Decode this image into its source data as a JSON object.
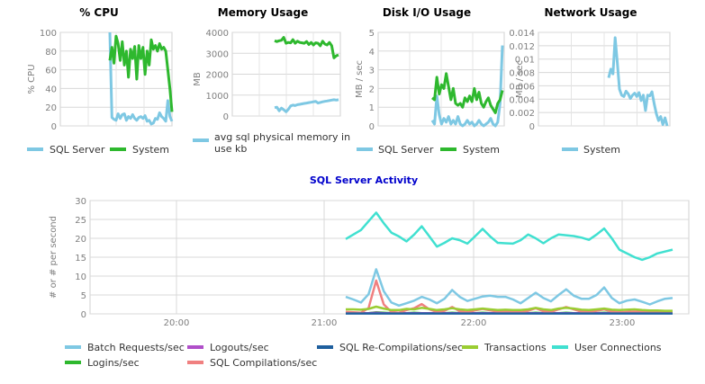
{
  "chart_data": [
    {
      "type": "line",
      "title": "% CPU",
      "ylabel": "% CPU",
      "ylim": [
        0,
        100
      ],
      "yticks": [
        "0",
        "20",
        "40",
        "60",
        "80",
        "100"
      ],
      "grid": true,
      "legend_placement": "bottom",
      "series": [
        {
          "name": "SQL Server",
          "color": "#7ec8e3",
          "x": [
            0,
            1,
            2,
            3,
            4,
            5,
            6,
            7,
            8,
            9,
            10,
            11,
            12,
            13,
            14,
            15,
            16,
            17,
            18,
            19,
            20,
            21,
            22,
            23,
            24,
            25,
            26,
            27,
            28,
            29,
            30
          ],
          "values": [
            100,
            9,
            7,
            6,
            13,
            8,
            12,
            13,
            6,
            10,
            8,
            12,
            8,
            6,
            9,
            10,
            8,
            11,
            5,
            6,
            2,
            3,
            8,
            7,
            14,
            10,
            8,
            5,
            27,
            10,
            5
          ]
        },
        {
          "name": "System",
          "color": "#2eb82e",
          "x": [
            0,
            1,
            2,
            3,
            4,
            5,
            6,
            7,
            8,
            9,
            10,
            11,
            12,
            13,
            14,
            15,
            16,
            17,
            18,
            19,
            20,
            21,
            22,
            23,
            24,
            25,
            26,
            27,
            28,
            29,
            30
          ],
          "values": [
            70,
            84,
            67,
            96,
            88,
            70,
            90,
            65,
            80,
            52,
            82,
            72,
            85,
            50,
            86,
            72,
            84,
            55,
            80,
            65,
            92,
            82,
            86,
            80,
            88,
            82,
            84,
            80,
            60,
            40,
            15
          ]
        }
      ]
    },
    {
      "type": "line",
      "title": "Memory Usage",
      "ylabel": "MB",
      "ylim": [
        0,
        4000
      ],
      "yticks": [
        "0",
        "1000",
        "2000",
        "3000",
        "4000"
      ],
      "grid": true,
      "legend_placement": "bottom",
      "series": [
        {
          "name": "avg sql physical memory in use kb",
          "color": "#7ec8e3",
          "x": [
            0,
            1,
            2,
            3,
            4,
            5,
            6,
            7,
            8,
            9,
            10,
            11,
            12,
            13,
            14,
            15,
            16,
            17,
            18,
            19,
            20,
            21,
            22,
            23,
            24,
            25,
            26,
            27,
            28
          ],
          "values": [
            400,
            420,
            250,
            380,
            300,
            200,
            320,
            480,
            520,
            500,
            540,
            560,
            580,
            600,
            620,
            640,
            660,
            680,
            700,
            620,
            650,
            680,
            700,
            720,
            740,
            760,
            780,
            760,
            780
          ]
        },
        {
          "name": "",
          "color": "#2eb82e",
          "x": [
            0,
            1,
            2,
            3,
            4,
            5,
            6,
            7,
            8,
            9,
            10,
            11,
            12,
            13,
            14,
            15,
            16,
            17,
            18,
            19,
            20,
            21,
            22,
            23,
            24,
            25,
            26,
            27,
            28
          ],
          "values": [
            3600,
            3560,
            3600,
            3620,
            3760,
            3480,
            3520,
            3500,
            3650,
            3480,
            3580,
            3520,
            3500,
            3480,
            3560,
            3420,
            3520,
            3400,
            3500,
            3480,
            3360,
            3580,
            3440,
            3400,
            3520,
            3360,
            2780,
            2880,
            2920
          ]
        }
      ]
    },
    {
      "type": "line",
      "title": "Disk I/O Usage",
      "ylabel": "MB / sec",
      "ylim": [
        0,
        5
      ],
      "yticks": [
        "0",
        "1",
        "2",
        "3",
        "4",
        "5"
      ],
      "grid": true,
      "legend_placement": "bottom",
      "series": [
        {
          "name": "SQL Server",
          "color": "#7ec8e3",
          "x": [
            0,
            1,
            2,
            3,
            4,
            5,
            6,
            7,
            8,
            9,
            10,
            11,
            12,
            13,
            14,
            15,
            16,
            17,
            18,
            19,
            20,
            21,
            22,
            23,
            24,
            25,
            26,
            27,
            28,
            29,
            30
          ],
          "values": [
            0.3,
            0.1,
            1.6,
            0.6,
            0.1,
            0.4,
            0.2,
            0.5,
            0.1,
            0.3,
            0.1,
            0.5,
            0.1,
            0.0,
            0.1,
            0.3,
            0.1,
            0.2,
            0.0,
            0.1,
            0.3,
            0.1,
            0.0,
            0.1,
            0.2,
            0.4,
            0.1,
            0.0,
            0.2,
            1.2,
            4.3
          ]
        },
        {
          "name": "System",
          "color": "#2eb82e",
          "x": [
            0,
            1,
            2,
            3,
            4,
            5,
            6,
            7,
            8,
            9,
            10,
            11,
            12,
            13,
            14,
            15,
            16,
            17,
            18,
            19,
            20,
            21,
            22,
            23,
            24,
            25,
            26,
            27,
            28,
            29,
            30
          ],
          "values": [
            1.5,
            1.4,
            2.6,
            1.7,
            2.2,
            2.0,
            2.8,
            2.1,
            1.4,
            2.0,
            1.2,
            1.1,
            1.2,
            1.0,
            1.5,
            1.3,
            1.6,
            1.3,
            2.0,
            1.4,
            1.8,
            1.2,
            1.0,
            1.3,
            1.5,
            1.1,
            0.9,
            0.7,
            1.2,
            1.4,
            1.9
          ]
        }
      ]
    },
    {
      "type": "line",
      "title": "Network Usage",
      "ylabel": "MB / sec",
      "ylim": [
        0,
        0.014
      ],
      "yticks": [
        "0",
        "0.002",
        "0.004",
        "0.006",
        "0.008",
        "0.01",
        "0.012",
        "0.014"
      ],
      "grid": true,
      "legend_placement": "bottom",
      "series": [
        {
          "name": "System",
          "color": "#7ec8e3",
          "x": [
            0,
            1,
            2,
            3,
            4,
            5,
            6,
            7,
            8,
            9,
            10,
            11,
            12,
            13,
            14,
            15,
            16,
            17,
            18,
            19,
            20,
            21,
            22,
            23,
            24,
            25,
            26,
            27
          ],
          "values": [
            0.0072,
            0.0085,
            0.0078,
            0.0132,
            0.0095,
            0.0055,
            0.0046,
            0.0044,
            0.0052,
            0.0048,
            0.0041,
            0.0046,
            0.0049,
            0.0044,
            0.005,
            0.0038,
            0.0046,
            0.0023,
            0.0046,
            0.0045,
            0.0051,
            0.0033,
            0.0018,
            0.0008,
            0.0014,
            0.0002,
            0.0012,
            0.0
          ]
        }
      ]
    },
    {
      "type": "line",
      "title": "SQL Server Activity",
      "ylabel": "# or # per second",
      "ylim": [
        0,
        30
      ],
      "yticks": [
        "0",
        "5",
        "10",
        "15",
        "20",
        "25",
        "30"
      ],
      "xticks": [
        "20:00",
        "21:00",
        "22:00",
        "23:00"
      ],
      "grid": true,
      "legend_placement": "bottom",
      "x": [
        "21:06",
        "21:09",
        "21:12",
        "21:15",
        "21:18",
        "21:21",
        "21:24",
        "21:27",
        "21:30",
        "21:33",
        "21:36",
        "21:39",
        "21:42",
        "21:45",
        "21:48",
        "21:51",
        "21:54",
        "21:57",
        "22:00",
        "22:03",
        "22:06",
        "22:09",
        "22:12",
        "22:15",
        "22:18",
        "22:21",
        "22:24",
        "22:27",
        "22:30",
        "22:33",
        "22:36",
        "22:39",
        "22:42",
        "22:45",
        "22:48",
        "22:51",
        "22:54",
        "22:57",
        "23:00",
        "23:03",
        "23:06",
        "23:09",
        "23:12",
        "23:15"
      ],
      "series": [
        {
          "name": "Batch Requests/sec",
          "color": "#7ec8e3",
          "values": [
            4.5,
            3.8,
            3.0,
            5.2,
            11.8,
            6.0,
            3.0,
            2.2,
            2.8,
            3.5,
            4.5,
            3.8,
            2.8,
            4.0,
            6.3,
            4.5,
            3.4,
            4.0,
            4.6,
            4.8,
            4.5,
            4.5,
            3.8,
            2.8,
            4.2,
            5.6,
            4.2,
            3.3,
            5.0,
            6.5,
            4.8,
            4.0,
            4.0,
            5.0,
            7.0,
            4.2,
            2.8,
            3.5,
            3.8,
            3.2,
            2.5,
            3.3,
            4.0,
            4.2
          ]
        },
        {
          "name": "Logins/sec",
          "color": "#2eb82e",
          "values": [
            0.3,
            0.3,
            0.2,
            0.2,
            0.4,
            0.3,
            0.2,
            0.2,
            0.2,
            0.3,
            0.2,
            0.2,
            0.2,
            0.2,
            0.3,
            0.2,
            0.2,
            0.2,
            0.3,
            0.2,
            0.2,
            0.2,
            0.2,
            0.2,
            0.2,
            0.3,
            0.2,
            0.2,
            0.2,
            0.3,
            0.2,
            0.2,
            0.2,
            0.2,
            0.3,
            0.2,
            0.2,
            0.2,
            0.2,
            0.2,
            0.2,
            0.2,
            0.2,
            0.2
          ]
        },
        {
          "name": "Logouts/sec",
          "color": "#b04fc9",
          "values": [
            0.2,
            0.2,
            0.2,
            0.2,
            0.3,
            0.2,
            0.2,
            0.2,
            0.2,
            0.2,
            0.2,
            0.2,
            0.2,
            0.2,
            0.2,
            0.2,
            0.2,
            0.2,
            0.2,
            0.2,
            0.2,
            0.2,
            0.2,
            0.2,
            0.2,
            0.2,
            0.2,
            0.2,
            0.2,
            0.2,
            0.2,
            0.2,
            0.2,
            0.2,
            0.2,
            0.2,
            0.2,
            0.2,
            0.2,
            0.2,
            0.2,
            0.2,
            0.2,
            0.2
          ]
        },
        {
          "name": "SQL Compilations/sec",
          "color": "#f08080",
          "values": [
            0.5,
            0.4,
            0.3,
            1.5,
            8.8,
            2.5,
            0.5,
            0.3,
            1.0,
            1.5,
            2.6,
            1.2,
            0.5,
            0.8,
            1.8,
            0.7,
            0.4,
            0.9,
            1.3,
            0.9,
            0.6,
            0.7,
            0.5,
            0.4,
            0.8,
            1.5,
            0.7,
            0.5,
            1.2,
            1.8,
            1.2,
            0.6,
            0.5,
            0.8,
            1.2,
            0.6,
            0.4,
            0.5,
            0.6,
            0.5,
            0.4,
            0.4,
            0.4,
            0.4
          ]
        },
        {
          "name": "SQL Re-Compilations/sec",
          "color": "#1f5f9e",
          "values": [
            0.1,
            0.1,
            0.1,
            0.1,
            0.1,
            0.1,
            0.1,
            0.1,
            0.1,
            0.1,
            0.1,
            0.1,
            0.1,
            0.1,
            0.1,
            0.1,
            0.1,
            0.1,
            0.1,
            0.1,
            0.1,
            0.1,
            0.1,
            0.1,
            0.1,
            0.1,
            0.1,
            0.1,
            0.1,
            0.1,
            0.1,
            0.1,
            0.1,
            0.1,
            0.1,
            0.1,
            0.1,
            0.1,
            0.1,
            0.1,
            0.1,
            0.1,
            0.1,
            0.1
          ]
        },
        {
          "name": "Transactions",
          "color": "#9acd32",
          "values": [
            1.2,
            1.2,
            1.1,
            1.3,
            1.9,
            1.4,
            1.0,
            1.0,
            1.3,
            1.2,
            1.6,
            1.3,
            1.0,
            1.2,
            1.5,
            1.2,
            1.0,
            1.2,
            1.4,
            1.2,
            1.0,
            1.1,
            1.0,
            1.0,
            1.2,
            1.6,
            1.2,
            1.0,
            1.4,
            1.6,
            1.4,
            1.1,
            1.0,
            1.2,
            1.4,
            1.1,
            1.0,
            1.1,
            1.2,
            1.0,
            0.9,
            0.9,
            0.8,
            0.8
          ]
        },
        {
          "name": "User Connections",
          "color": "#40e0d0",
          "values": [
            19.8,
            21.0,
            22.2,
            24.5,
            26.8,
            24.0,
            21.5,
            20.5,
            19.2,
            21.0,
            23.2,
            20.5,
            17.8,
            18.8,
            20.0,
            19.5,
            18.6,
            20.5,
            22.5,
            20.5,
            18.8,
            18.7,
            18.6,
            19.5,
            21.0,
            20.0,
            18.7,
            20.0,
            21.0,
            20.8,
            20.6,
            20.2,
            19.6,
            21.0,
            22.6,
            20.0,
            17.0,
            16.0,
            15.0,
            14.3,
            15.0,
            16.0,
            16.5,
            17.0
          ]
        }
      ]
    }
  ]
}
